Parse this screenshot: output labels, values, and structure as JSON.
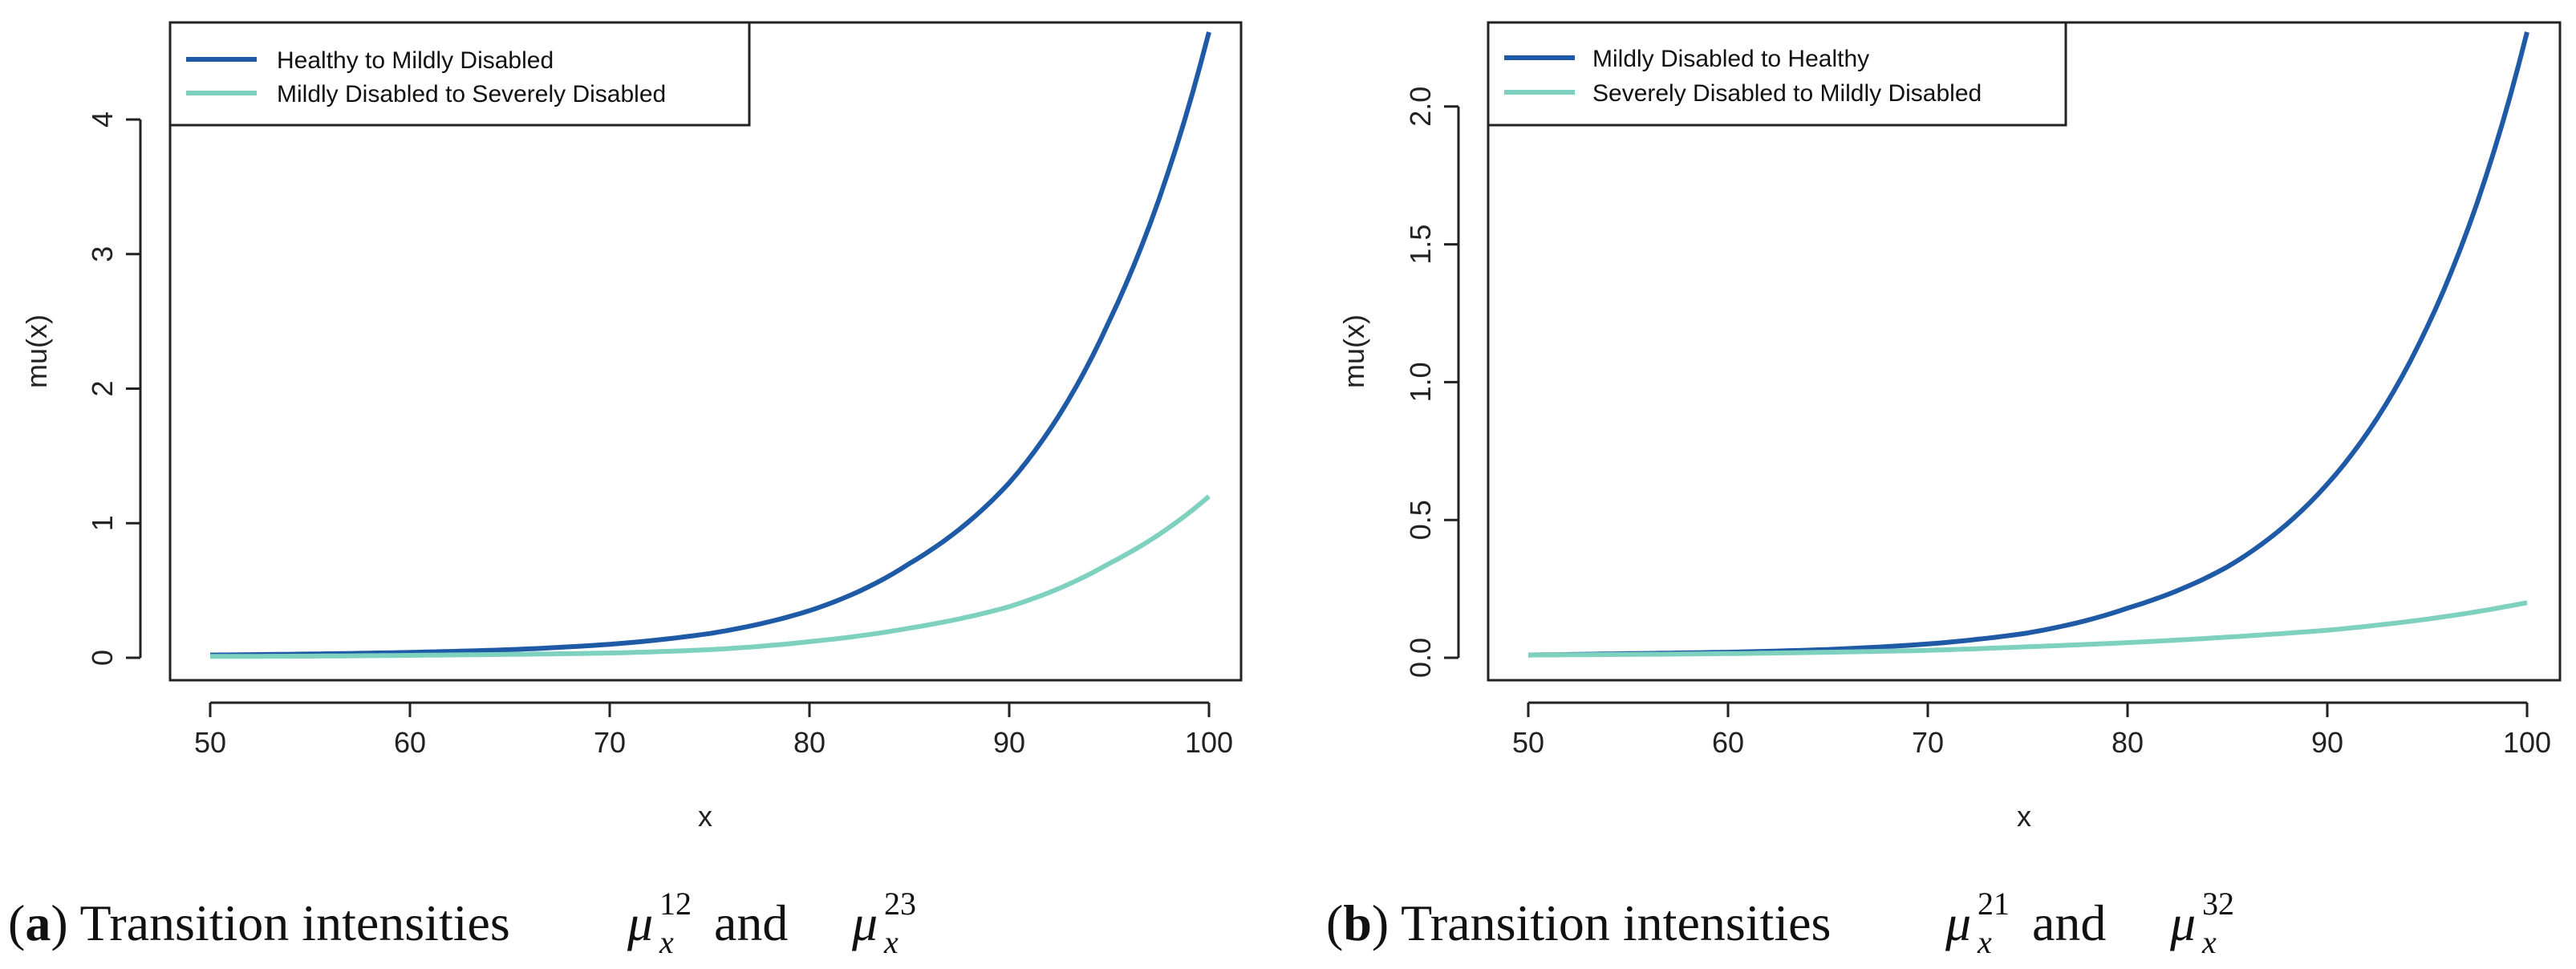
{
  "colors": {
    "dark_blue": "#1f5aa6",
    "teal": "#7fd1bf",
    "axis": "#222222"
  },
  "chart_data": [
    {
      "type": "line",
      "panel": "a",
      "title": "",
      "xlabel": "x",
      "ylabel": "mu(x)",
      "xlim": [
        50,
        100
      ],
      "ylim": [
        0,
        4.65
      ],
      "x_ticks": [
        "50",
        "60",
        "70",
        "80",
        "90",
        "100"
      ],
      "y_ticks": [
        "0",
        "1",
        "2",
        "3",
        "4"
      ],
      "x": [
        50,
        55,
        60,
        65,
        70,
        75,
        80,
        85,
        90,
        95,
        100
      ],
      "series": [
        {
          "name": "Healthy to Mildly Disabled",
          "color": "#1f5aa6",
          "values": [
            0.02,
            0.028,
            0.04,
            0.06,
            0.1,
            0.18,
            0.35,
            0.7,
            1.3,
            2.5,
            4.65
          ]
        },
        {
          "name": "Mildly Disabled to Severely Disabled",
          "color": "#7fd1bf",
          "values": [
            0.01,
            0.012,
            0.018,
            0.025,
            0.035,
            0.06,
            0.12,
            0.22,
            0.38,
            0.7,
            1.2
          ]
        }
      ],
      "legend_position": "top-left",
      "caption": {
        "label": "a",
        "text": "Transition intensities",
        "sym": "μ",
        "sub": "x",
        "sup1": "12",
        "and": "and",
        "sup2": "23"
      }
    },
    {
      "type": "line",
      "panel": "b",
      "title": "",
      "xlabel": "x",
      "ylabel": "mu(x)",
      "xlim": [
        50,
        100
      ],
      "ylim": [
        0,
        2.27
      ],
      "x_ticks": [
        "50",
        "60",
        "70",
        "80",
        "90",
        "100"
      ],
      "y_ticks": [
        "0.0",
        "0.5",
        "1.0",
        "1.5",
        "2.0"
      ],
      "x": [
        50,
        55,
        60,
        65,
        70,
        75,
        80,
        85,
        90,
        95,
        100
      ],
      "series": [
        {
          "name": "Mildly Disabled to Healthy",
          "color": "#1f5aa6",
          "values": [
            0.01,
            0.015,
            0.02,
            0.03,
            0.05,
            0.09,
            0.18,
            0.33,
            0.63,
            1.2,
            2.27
          ]
        },
        {
          "name": "Severely Disabled to Mildly Disabled",
          "color": "#7fd1bf",
          "values": [
            0.01,
            0.012,
            0.015,
            0.02,
            0.027,
            0.04,
            0.055,
            0.075,
            0.1,
            0.14,
            0.2
          ]
        }
      ],
      "legend_position": "top-left",
      "caption": {
        "label": "b",
        "text": "Transition intensities",
        "sym": "μ",
        "sub": "x",
        "sup1": "21",
        "and": "and",
        "sup2": "32"
      }
    }
  ]
}
